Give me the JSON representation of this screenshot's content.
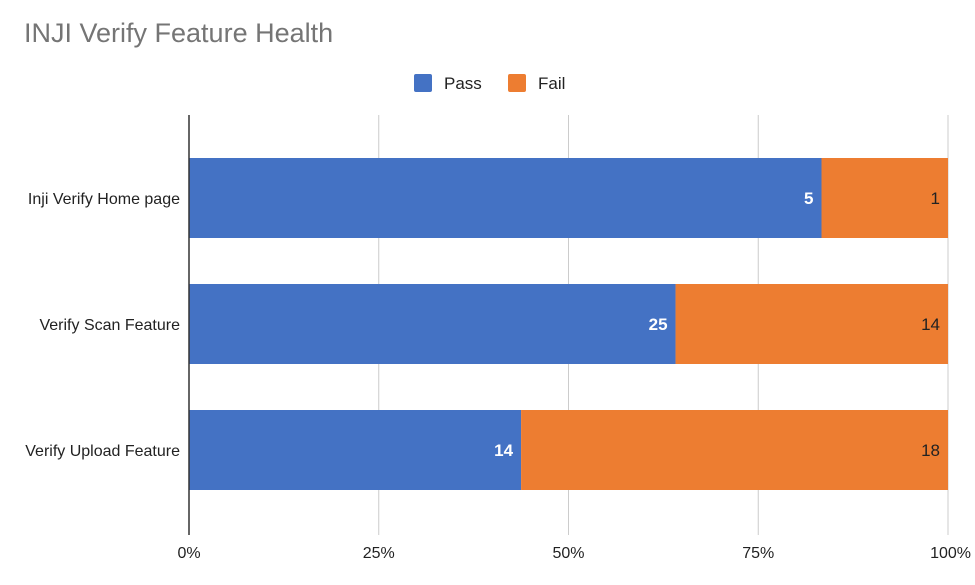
{
  "chart_data": {
    "type": "bar",
    "orientation": "horizontal",
    "stacking": "percent",
    "title": "INJI Verify Feature Health",
    "categories": [
      "Inji Verify Home page",
      "Verify Scan Feature",
      "Verify Upload Feature"
    ],
    "series": [
      {
        "name": "Pass",
        "color": "#4472c4",
        "label_color": "#ffffff",
        "values": [
          5,
          25,
          14
        ]
      },
      {
        "name": "Fail",
        "color": "#ed7d31",
        "label_color": "#222222",
        "values": [
          1,
          14,
          18
        ]
      }
    ],
    "x_ticks": [
      "0%",
      "25%",
      "50%",
      "75%",
      "100%"
    ],
    "xlim": [
      0,
      100
    ],
    "grid": true,
    "legend_position": "top"
  }
}
